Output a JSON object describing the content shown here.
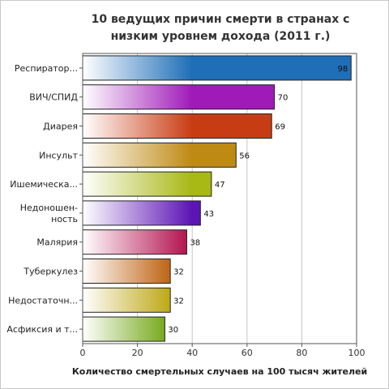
{
  "chart_data": {
    "type": "bar",
    "orientation": "horizontal",
    "title": "10 ведущих причин смерти в странах с низким уровнем дохода (2011 г.)",
    "xlabel": "Количество смертельных случаев на 100 тысяч жителей",
    "ylabel": "",
    "xlim": [
      0,
      100
    ],
    "xticks": [
      0,
      20,
      40,
      60,
      80,
      100
    ],
    "grid": true,
    "legend": "none",
    "categories": [
      "Респиратор...",
      "ВИЧ/СПИД",
      "Диарея",
      "Инсульт",
      "Ишемическа...",
      "Недоношен-ность",
      "Малярия",
      "Туберкулез",
      "Недостаточн...",
      "Асфиксия и т..."
    ],
    "values": [
      98,
      70,
      69,
      56,
      47,
      43,
      38,
      32,
      32,
      30
    ],
    "colors": [
      "#1f6eb8",
      "#a01ab8",
      "#c83c14",
      "#bf8a14",
      "#a8b814",
      "#5c14b4",
      "#b41450",
      "#be6414",
      "#bea814",
      "#78aa1e"
    ]
  }
}
